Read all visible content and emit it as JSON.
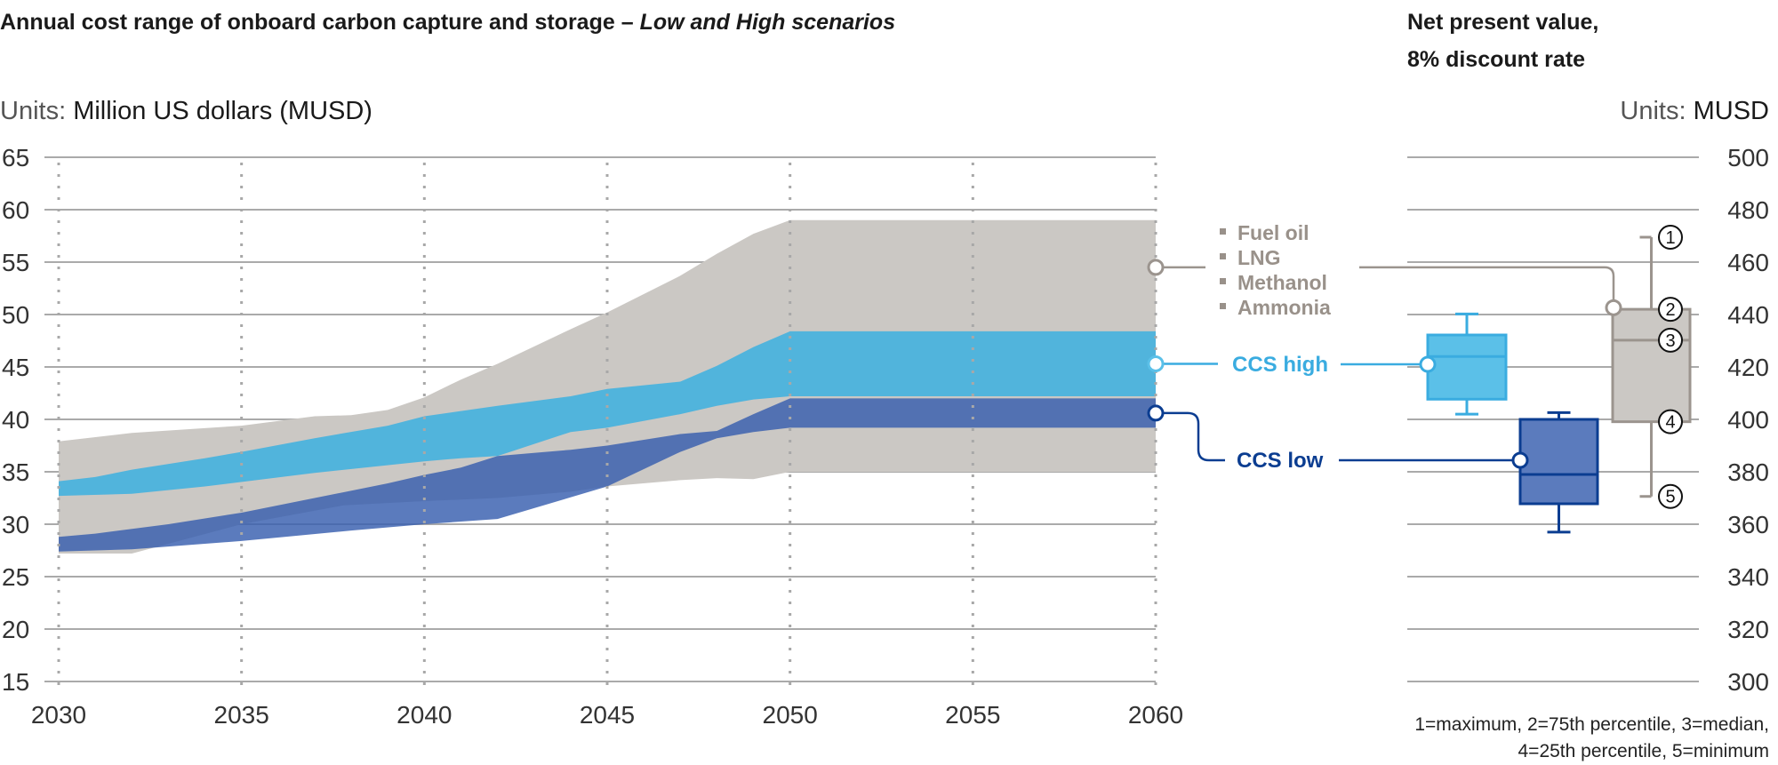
{
  "chart_data": [
    {
      "type": "area",
      "title": "Annual cost range of onboard carbon capture and storage – ",
      "title_italic": "Low and High scenarios",
      "units_prefix": "Units: ",
      "units": "Million US dollars (MUSD)",
      "xlim": [
        2030,
        2060
      ],
      "ylim": [
        15,
        65
      ],
      "x_ticks": [
        "2030",
        "2035",
        "2040",
        "2045",
        "2050",
        "2055",
        "2060"
      ],
      "y_ticks": [
        "65",
        "60",
        "55",
        "50",
        "45",
        "40",
        "35",
        "30",
        "25",
        "20",
        "15"
      ],
      "grid": "horizontal solid, vertical dotted",
      "series": [
        {
          "key": "fuel",
          "legend_items": [
            "Fuel oil",
            "LNG",
            "Methanol",
            "Ammonia"
          ],
          "color": "#cbc8c4",
          "label_point": [
            2060,
            54.5
          ],
          "upper": [
            [
              2030,
              37.9
            ],
            [
              2032,
              38.7
            ],
            [
              2035,
              39.4
            ],
            [
              2037,
              40.3
            ],
            [
              2038,
              40.4
            ],
            [
              2039,
              40.9
            ],
            [
              2040,
              42.1
            ],
            [
              2041,
              43.8
            ],
            [
              2042,
              45.3
            ],
            [
              2044,
              48.6
            ],
            [
              2045,
              50.2
            ],
            [
              2047,
              53.7
            ],
            [
              2048,
              55.8
            ],
            [
              2049,
              57.7
            ],
            [
              2050,
              59
            ],
            [
              2060,
              59
            ]
          ],
          "lower": [
            [
              2030,
              27.2
            ],
            [
              2032,
              27.2
            ],
            [
              2035,
              30
            ],
            [
              2037.8,
              31.8
            ],
            [
              2040,
              32.2
            ],
            [
              2042,
              32.5
            ],
            [
              2044,
              33.1
            ],
            [
              2045,
              33.6
            ],
            [
              2047,
              34.2
            ],
            [
              2048,
              34.4
            ],
            [
              2049,
              34.3
            ],
            [
              2050,
              35
            ],
            [
              2060,
              35
            ]
          ]
        },
        {
          "key": "low",
          "name": "CCS low",
          "color": "#375eae",
          "label_point": [
            2060,
            40.6
          ],
          "upper": [
            [
              2030,
              28.8
            ],
            [
              2031,
              29.1
            ],
            [
              2033,
              30
            ],
            [
              2035,
              31.1
            ],
            [
              2037,
              32.5
            ],
            [
              2039,
              33.9
            ],
            [
              2040,
              34.7
            ],
            [
              2041,
              35.4
            ],
            [
              2042,
              36.5
            ],
            [
              2044,
              37.1
            ],
            [
              2045,
              37.5
            ],
            [
              2047,
              38.6
            ],
            [
              2048,
              38.9
            ],
            [
              2049,
              40.5
            ],
            [
              2050,
              42
            ],
            [
              2060,
              42
            ]
          ],
          "lower": [
            [
              2030,
              27.4
            ],
            [
              2032,
              27.6
            ],
            [
              2035,
              28.4
            ],
            [
              2038,
              29.4
            ],
            [
              2040,
              30
            ],
            [
              2042,
              30.5
            ],
            [
              2045,
              33.6
            ],
            [
              2047,
              36.9
            ],
            [
              2048,
              38.2
            ],
            [
              2049,
              38.8
            ],
            [
              2050,
              39.2
            ],
            [
              2060,
              39.2
            ]
          ]
        },
        {
          "key": "high",
          "name": "CCS high",
          "color": "#3cb0e0",
          "label_point": [
            2060,
            45.3
          ],
          "upper": [
            [
              2030,
              34.1
            ],
            [
              2031,
              34.5
            ],
            [
              2032,
              35.2
            ],
            [
              2034,
              36.3
            ],
            [
              2035,
              36.9
            ],
            [
              2037,
              38.2
            ],
            [
              2039,
              39.4
            ],
            [
              2040,
              40.3
            ],
            [
              2041,
              40.8
            ],
            [
              2042,
              41.3
            ],
            [
              2044,
              42.2
            ],
            [
              2045,
              42.9
            ],
            [
              2047,
              43.6
            ],
            [
              2048,
              45.1
            ],
            [
              2049,
              46.9
            ],
            [
              2050,
              48.4
            ],
            [
              2060,
              48.4
            ]
          ],
          "lower": [
            [
              2030,
              32.7
            ],
            [
              2032,
              32.9
            ],
            [
              2034,
              33.6
            ],
            [
              2037,
              34.9
            ],
            [
              2040,
              36.0
            ],
            [
              2041,
              36.3
            ],
            [
              2042,
              36.5
            ],
            [
              2044,
              38.8
            ],
            [
              2045,
              39.2
            ],
            [
              2047,
              40.5
            ],
            [
              2048,
              41.3
            ],
            [
              2049,
              41.9
            ],
            [
              2050,
              42.2
            ],
            [
              2060,
              42.2
            ]
          ]
        }
      ]
    },
    {
      "type": "box",
      "title_line1": "Net present value,",
      "title_line2": "8% discount rate",
      "units_prefix": "Units: ",
      "units": "MUSD",
      "ylim": [
        300,
        500
      ],
      "y_ticks": [
        "500",
        "480",
        "460",
        "440",
        "420",
        "400",
        "380",
        "360",
        "340",
        "320",
        "300"
      ],
      "boxes": [
        {
          "key": "high",
          "name": "CCS high",
          "min": 402,
          "q1": 407.7,
          "median": 424,
          "q3": 432.2,
          "max": 440.2,
          "marker": 421,
          "fill": "#5bc0e8",
          "stroke": "#3aace0"
        },
        {
          "key": "low",
          "name": "CCS low",
          "min": 357,
          "q1": 367.8,
          "median": 379,
          "q3": 400,
          "max": 402.6,
          "marker": 384.4,
          "fill": "#5b7bbd",
          "stroke": "#0b3d91"
        },
        {
          "key": "fuel",
          "name": "Fuel oil, LNG, Methanol, Ammonia",
          "min": 370.6,
          "q1": 399.1,
          "median": 430.2,
          "q3": 442,
          "max": 469.5,
          "marker": 442.6,
          "fill": "#cbc8c4",
          "stroke": "#9b948e"
        }
      ],
      "markers": [
        "1",
        "2",
        "3",
        "4",
        "5"
      ],
      "footnote_line1": "1=maximum, 2=75th percentile, 3=median,",
      "footnote_line2": "4=25th percentile, 5=minimum"
    }
  ]
}
